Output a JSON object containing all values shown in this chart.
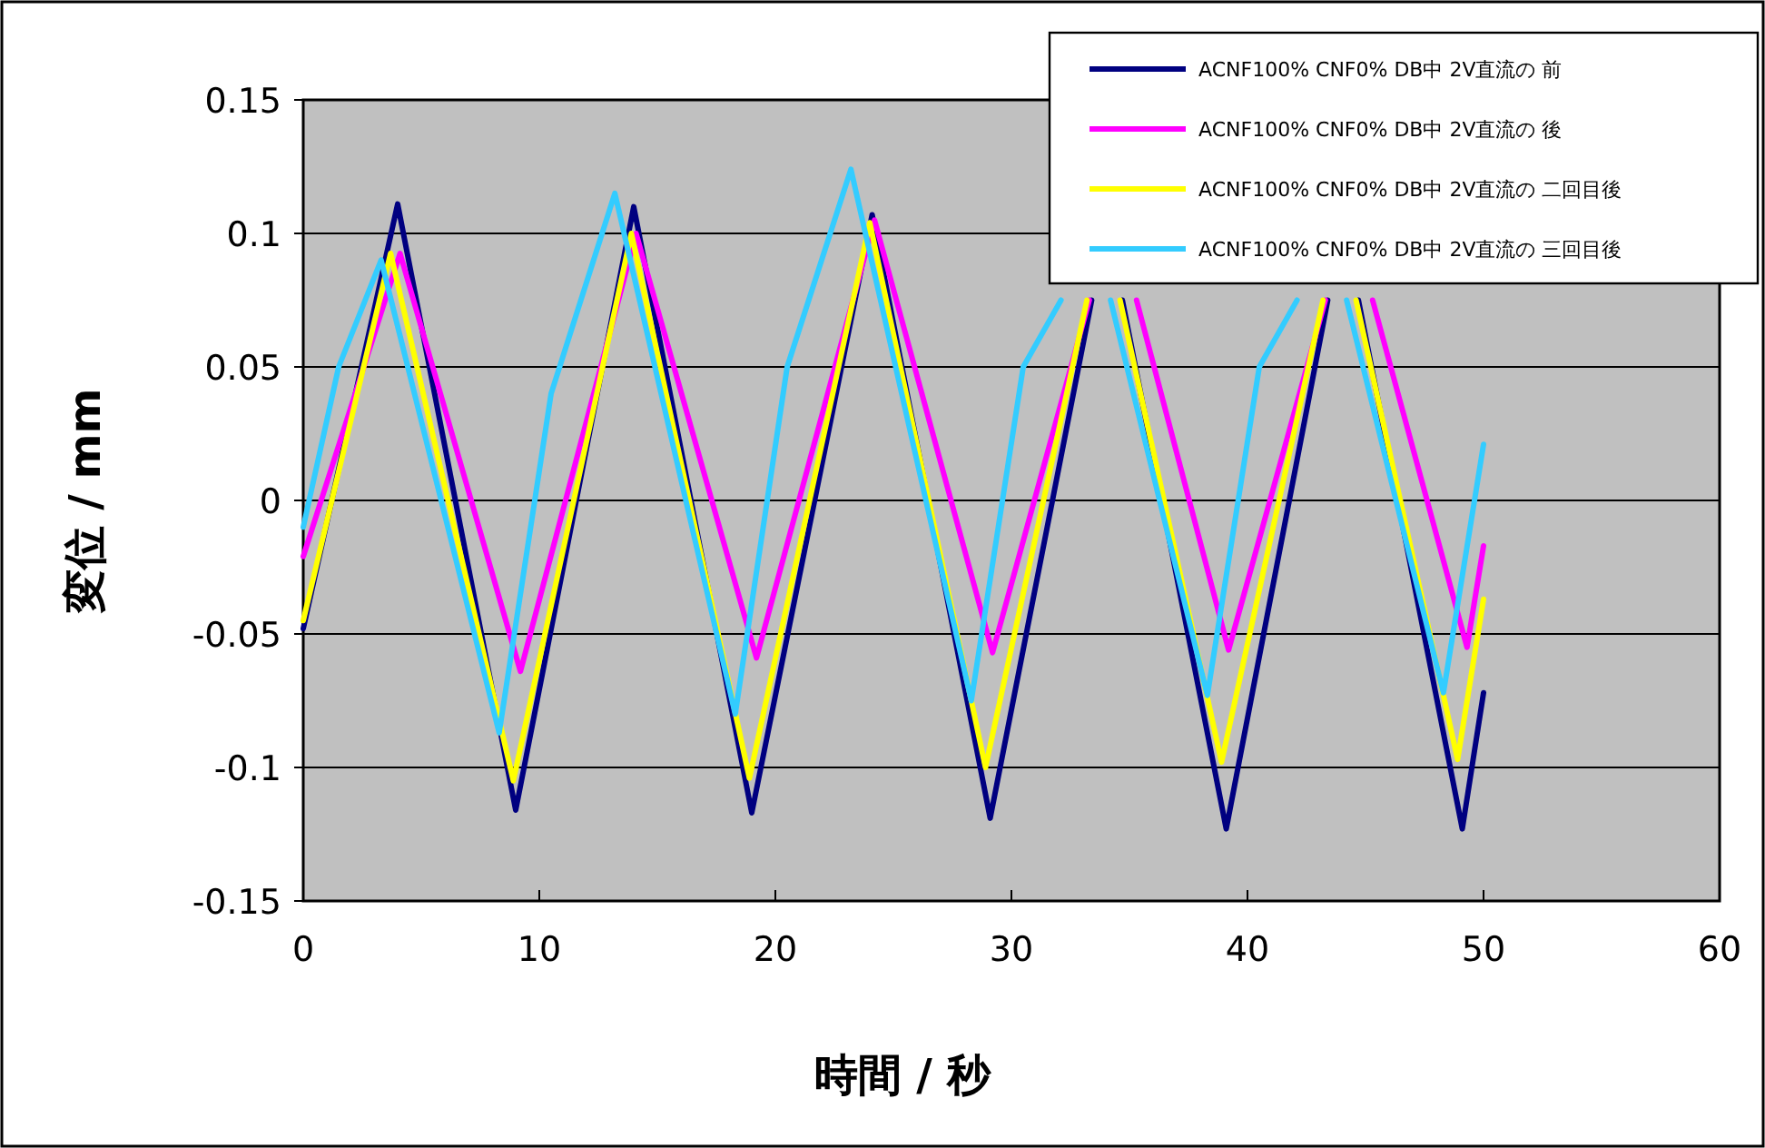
{
  "chart_data": {
    "type": "line",
    "xlabel": "時間 / 秒",
    "ylabel": "変位 / mm",
    "xlim": [
      0,
      60
    ],
    "xticks": [
      0,
      10,
      20,
      30,
      40,
      50,
      60
    ],
    "ylim": [
      -0.15,
      0.15
    ],
    "yticks": [
      -0.15,
      -0.1,
      -0.05,
      0,
      0.05,
      0.1,
      0.15
    ],
    "grid": "y",
    "legend": "top right",
    "line_style": "solid",
    "marker": "none",
    "series": [
      {
        "name": "ACNF100% CNF0% DB中 2V直流の 前",
        "color": "#000080",
        "x": [
          0,
          4.0,
          9.0,
          14.0,
          19.0,
          24.1,
          29.1,
          33.4,
          34.1,
          34.7,
          39.1,
          43.4,
          44.1,
          44.7,
          49.1,
          50
        ],
        "values": [
          -0.048,
          0.111,
          -0.116,
          0.11,
          -0.117,
          0.107,
          -0.119,
          0.075,
          null,
          0.075,
          -0.123,
          0.075,
          null,
          0.075,
          -0.123,
          -0.072
        ]
      },
      {
        "name": "ACNF100% CNF0% DB中 2V直流の 後",
        "color": "#ff00ff",
        "x": [
          0,
          4.1,
          9.2,
          14.1,
          19.2,
          24.2,
          29.2,
          33.3,
          34.2,
          35.3,
          39.2,
          43.3,
          44.2,
          45.3,
          49.3,
          50
        ],
        "values": [
          -0.021,
          0.0925,
          -0.064,
          0.1,
          -0.059,
          0.105,
          -0.057,
          0.075,
          null,
          0.075,
          -0.056,
          0.075,
          null,
          0.075,
          -0.055,
          -0.017
        ]
      },
      {
        "name": "ACNF100% CNF0% DB中 2V直流の 二回目後",
        "color": "#ffff00",
        "x": [
          0,
          3.7,
          8.9,
          13.9,
          18.9,
          24.0,
          28.9,
          33.2,
          33.9,
          34.6,
          38.9,
          43.2,
          43.9,
          44.6,
          48.9,
          50
        ],
        "values": [
          -0.045,
          0.0925,
          -0.105,
          0.1,
          -0.104,
          0.104,
          -0.1,
          0.075,
          null,
          0.075,
          -0.098,
          0.075,
          null,
          0.075,
          -0.097,
          -0.037
        ]
      },
      {
        "name": "ACNF100% CNF0% DB中 2V直流の 三回目後",
        "color": "#33ccff",
        "x": [
          0,
          1.5,
          3.3,
          8.3,
          10.5,
          13.2,
          18.3,
          20.5,
          23.2,
          28.3,
          30.5,
          32.1,
          33.2,
          34.2,
          38.3,
          40.5,
          42.1,
          43.2,
          44.2,
          48.3,
          50
        ],
        "values": [
          -0.01,
          0.05,
          0.09,
          -0.087,
          0.04,
          0.115,
          -0.08,
          0.05,
          0.124,
          -0.075,
          0.05,
          0.075,
          null,
          0.075,
          -0.073,
          0.05,
          0.075,
          null,
          0.075,
          -0.072,
          0.021
        ]
      }
    ]
  }
}
